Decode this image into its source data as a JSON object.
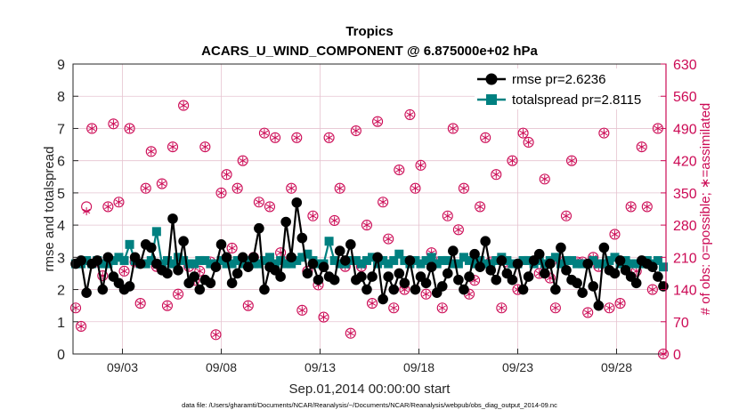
{
  "chart_data": {
    "type": "line",
    "title_line1": "Tropics",
    "title_line2": "ACARS_U_WIND_COMPONENT @ 6.875000e+02 hPa",
    "xlabel": "Sep.01,2014 00:00:00 start",
    "ylabel_left": "rmse and totalspread",
    "ylabel_right": "# of obs: o=possible; ∗=assimilated",
    "footnote": "data file: /Users/gharamti/Documents/NCAR/Reanalysis/~/Documents/NCAR/Reanalysis/webpub/obs_diag_output_2014-09.nc",
    "xlim_days": [
      0.5,
      30.5
    ],
    "ylim_left": [
      0,
      9
    ],
    "ylim_right": [
      0,
      630
    ],
    "y_ticks_left": [
      "0",
      "1",
      "2",
      "3",
      "4",
      "5",
      "6",
      "7",
      "8",
      "9"
    ],
    "y_ticks_right": [
      "0",
      "70",
      "140",
      "210",
      "280",
      "350",
      "420",
      "490",
      "560",
      "630"
    ],
    "x_tick_days": [
      3,
      8,
      13,
      18,
      23,
      28
    ],
    "x_tick_labels": [
      "09/03",
      "09/08",
      "09/13",
      "09/18",
      "09/23",
      "09/28"
    ],
    "colors": {
      "rmse": "#000000",
      "totalspread": "#008080",
      "obs_count": "#cc0a55",
      "grid": "#e6c3d0"
    },
    "series": [
      {
        "name": "rmse",
        "legend": "rmse pr=2.6236",
        "marker": "circle",
        "values": [
          2.8,
          2.9,
          1.9,
          2.8,
          2.9,
          2.0,
          3.0,
          2.4,
          2.2,
          2.0,
          2.1,
          3.0,
          2.8,
          3.4,
          3.3,
          2.8,
          2.6,
          2.5,
          4.2,
          2.6,
          3.5,
          2.2,
          2.4,
          2.0,
          2.3,
          2.2,
          2.7,
          3.4,
          3.0,
          2.2,
          2.5,
          3.0,
          2.7,
          3.0,
          3.9,
          2.0,
          2.7,
          2.6,
          2.4,
          4.1,
          3.0,
          4.7,
          3.6,
          2.5,
          2.8,
          2.3,
          2.7,
          2.4,
          2.3,
          3.2,
          2.9,
          3.4,
          2.3,
          2.4,
          2.0,
          2.4,
          3.0,
          1.7,
          2.4,
          2.0,
          2.5,
          2.2,
          2.9,
          2.0,
          2.4,
          2.2,
          2.7,
          1.9,
          2.1,
          2.5,
          3.2,
          2.3,
          2.0,
          2.4,
          3.1,
          2.7,
          3.5,
          2.6,
          2.3,
          2.9,
          2.5,
          2.3,
          2.8,
          2.0,
          2.4,
          2.9,
          3.1,
          2.5,
          2.8,
          2.0,
          3.3,
          2.6,
          2.3,
          2.2,
          1.9,
          2.8,
          2.1,
          1.5,
          3.3,
          2.6,
          2.5,
          2.9,
          2.6,
          2.4,
          2.2,
          2.9,
          2.8,
          2.7,
          2.4,
          2.1
        ]
      },
      {
        "name": "totalspread",
        "legend": "totalspread pr=2.8115",
        "marker": "square",
        "values": [
          2.8,
          2.8,
          2.9,
          2.8,
          2.9,
          2.8,
          2.8,
          2.9,
          3.0,
          2.9,
          3.4,
          2.9,
          2.8,
          2.8,
          2.9,
          3.8,
          2.8,
          2.9,
          2.8,
          3.0,
          2.9,
          2.8,
          2.8,
          2.9,
          2.9,
          2.8,
          2.8,
          2.9,
          2.8,
          2.8,
          2.9,
          2.8,
          2.9,
          2.8,
          2.8,
          2.9,
          3.0,
          2.8,
          2.9,
          2.8,
          2.8,
          2.9,
          3.0,
          3.1,
          2.9,
          2.8,
          2.8,
          3.5,
          2.9,
          2.8,
          2.8,
          2.9,
          2.9,
          2.8,
          2.9,
          3.0,
          2.8,
          2.9,
          2.8,
          2.9,
          3.1,
          2.9,
          2.8,
          2.9,
          2.8,
          2.9,
          3.0,
          2.8,
          2.9,
          2.9,
          2.8,
          2.8,
          3.0,
          2.9,
          2.8,
          2.9,
          2.8,
          2.8,
          2.9,
          3.0,
          2.9,
          2.8,
          2.8,
          2.9,
          2.9,
          2.8,
          2.9,
          2.8,
          2.9,
          3.0,
          2.8,
          2.9,
          2.9,
          2.8,
          2.8,
          2.8,
          2.9,
          2.8,
          2.8,
          2.9,
          3.0,
          2.8,
          2.9,
          2.8,
          2.8,
          2.8,
          2.9,
          2.8,
          2.9,
          2.7
        ]
      }
    ],
    "obs_counts": {
      "name": "# of obs",
      "possible": [
        100,
        60,
        320,
        490,
        200,
        170,
        320,
        500,
        330,
        180,
        490,
        200,
        110,
        360,
        440,
        190,
        370,
        105,
        450,
        130,
        540,
        190,
        160,
        180,
        450,
        200,
        42,
        350,
        390,
        230,
        360,
        420,
        105,
        210,
        330,
        480,
        320,
        470,
        220,
        200,
        360,
        470,
        95,
        180,
        300,
        150,
        80,
        470,
        290,
        360,
        190,
        45,
        485,
        190,
        280,
        110,
        505,
        330,
        250,
        100,
        400,
        140,
        520,
        360,
        410,
        130,
        220,
        200,
        100,
        300,
        490,
        270,
        360,
        130,
        160,
        320,
        470,
        200,
        390,
        100,
        200,
        420,
        140,
        480,
        460,
        200,
        175,
        380,
        165,
        100,
        200,
        300,
        420,
        200,
        200,
        90,
        210,
        190,
        480,
        100,
        260,
        110,
        200,
        320,
        180,
        450,
        320,
        140,
        490,
        0
      ],
      "assimilated": [
        100,
        60,
        310,
        490,
        200,
        170,
        320,
        500,
        330,
        180,
        490,
        200,
        110,
        360,
        440,
        190,
        370,
        105,
        450,
        130,
        540,
        190,
        160,
        180,
        450,
        200,
        42,
        350,
        390,
        230,
        360,
        420,
        105,
        210,
        330,
        480,
        320,
        470,
        220,
        200,
        360,
        470,
        95,
        180,
        300,
        150,
        80,
        470,
        290,
        360,
        190,
        45,
        485,
        190,
        280,
        110,
        505,
        330,
        250,
        100,
        400,
        140,
        520,
        360,
        410,
        130,
        220,
        200,
        100,
        300,
        490,
        270,
        360,
        130,
        160,
        320,
        470,
        200,
        390,
        100,
        200,
        420,
        140,
        480,
        460,
        200,
        175,
        380,
        165,
        100,
        200,
        300,
        420,
        200,
        200,
        90,
        210,
        190,
        480,
        100,
        260,
        110,
        200,
        320,
        180,
        450,
        320,
        140,
        490,
        0
      ]
    }
  }
}
